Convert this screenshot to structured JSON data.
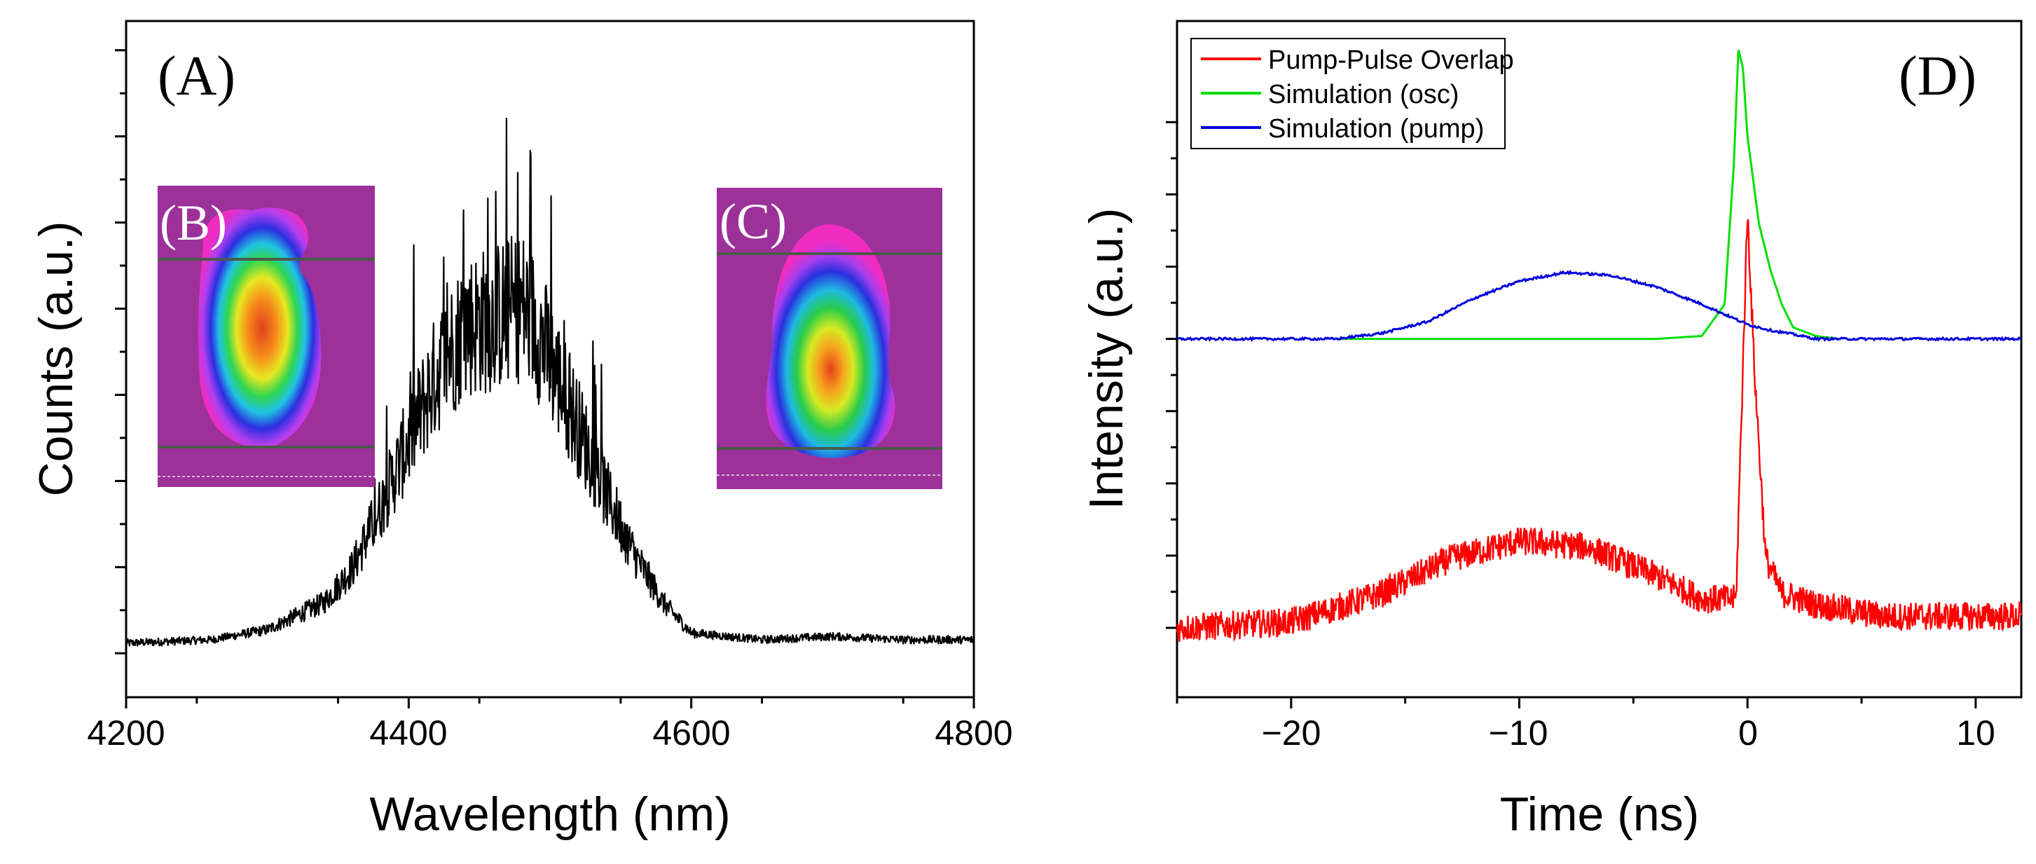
{
  "chart_data": [
    {
      "panel": "A",
      "type": "line",
      "panel_label": "(A)",
      "xlabel": "Wavelength (nm)",
      "ylabel": "Counts (a.u.)",
      "xlim": [
        4200,
        4800
      ],
      "ylim": [
        0,
        1.0
      ],
      "xticks": [
        4200,
        4400,
        4600,
        4800
      ],
      "xticklabels": [
        "4200",
        "4400",
        "4600",
        "4800"
      ],
      "grid": false,
      "series": [
        {
          "name": "Spectrum",
          "color": "#000000",
          "envelope": {
            "x": [
              4200,
              4260,
              4300,
              4340,
              4360,
              4380,
              4400,
              4420,
              4440,
              4460,
              4470,
              4480,
              4490,
              4500,
              4520,
              4540,
              4560,
              4580,
              4600,
              4650,
              4700,
              4750,
              4800
            ],
            "y": [
              0.08,
              0.085,
              0.1,
              0.14,
              0.19,
              0.28,
              0.38,
              0.48,
              0.55,
              0.56,
              0.57,
              0.58,
              0.55,
              0.5,
              0.4,
              0.3,
              0.21,
              0.14,
              0.095,
              0.085,
              0.09,
              0.085,
              0.085
            ]
          },
          "peak_max": 0.93
        }
      ],
      "insets": [
        {
          "label": "(B)",
          "description": "beam profile"
        },
        {
          "label": "(C)",
          "description": "beam profile"
        }
      ]
    },
    {
      "panel": "D",
      "type": "line",
      "panel_label": "(D)",
      "xlabel": "Time (ns)",
      "ylabel": "Intensity (a.u.)",
      "xlim": [
        -25,
        12
      ],
      "ylim": [
        -0.12,
        1.05
      ],
      "xticks": [
        -20,
        -10,
        0,
        10
      ],
      "xticklabels": [
        "−20",
        "−10",
        "0",
        "10"
      ],
      "grid": false,
      "legend": "top-left",
      "series": [
        {
          "name": "Pump-Pulse Overlap",
          "color": "#ff0000",
          "x": [
            -25,
            -20,
            -16,
            -13,
            -10,
            -7,
            -4,
            -2,
            -0.5,
            0,
            0.3,
            0.8,
            1.5,
            3,
            6,
            9,
            12
          ],
          "y": [
            0.0,
            0.01,
            0.06,
            0.12,
            0.15,
            0.14,
            0.09,
            0.05,
            0.05,
            0.72,
            0.45,
            0.12,
            0.06,
            0.04,
            0.02,
            0.02,
            0.02
          ]
        },
        {
          "name": "Simulation (osc)",
          "color": "#00e000",
          "x": [
            -18,
            -4,
            -2,
            -1,
            -0.6,
            -0.4,
            -0.2,
            0,
            0.5,
            1,
            1.5,
            2,
            3,
            4
          ],
          "y": [
            0.5,
            0.5,
            0.505,
            0.56,
            0.8,
            1.0,
            0.97,
            0.85,
            0.7,
            0.62,
            0.56,
            0.52,
            0.505,
            0.5
          ]
        },
        {
          "name": "Simulation (pump)",
          "color": "#0000dd",
          "x": [
            -25,
            -18,
            -16,
            -14,
            -12,
            -10,
            -8,
            -6,
            -4,
            -2,
            0,
            1,
            2,
            3,
            12
          ],
          "y": [
            0.5,
            0.5,
            0.51,
            0.53,
            0.57,
            0.6,
            0.615,
            0.61,
            0.59,
            0.56,
            0.525,
            0.515,
            0.508,
            0.5,
            0.5
          ]
        }
      ]
    }
  ]
}
